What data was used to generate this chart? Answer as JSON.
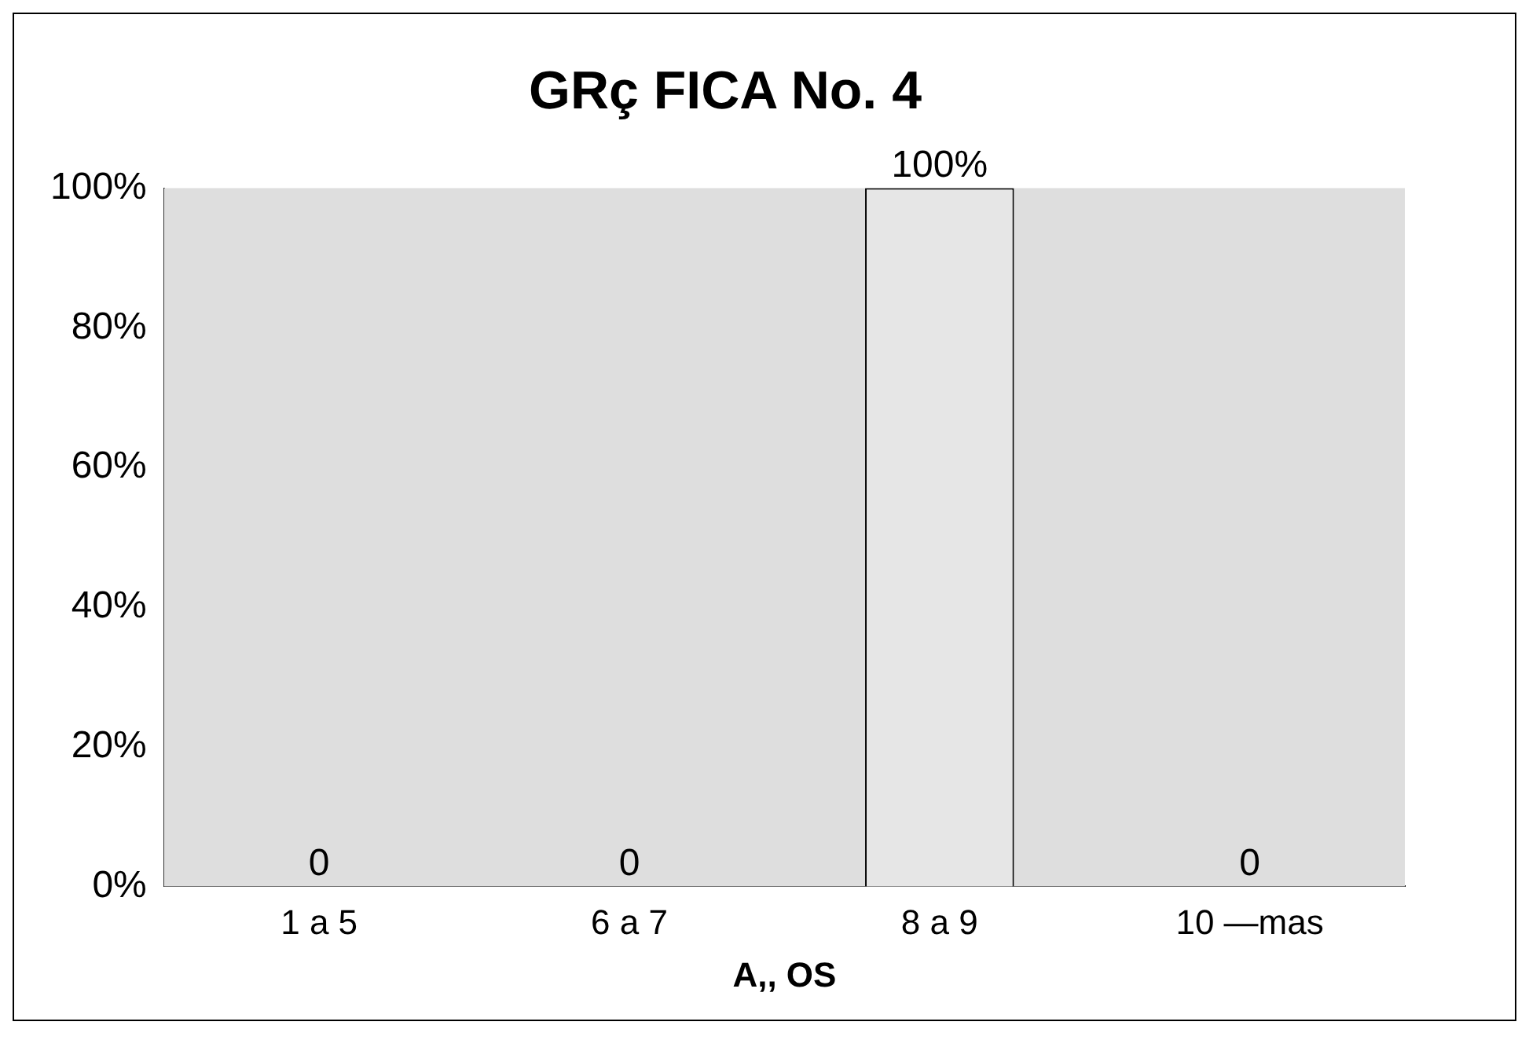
{
  "chart_data": {
    "type": "bar",
    "title": "GRç FICA No. 4",
    "xlabel": "A,, OS",
    "categories": [
      "1 a 5",
      "6 a 7",
      "8 a 9",
      "10 —mas"
    ],
    "values": [
      0,
      0,
      100,
      0
    ],
    "color": "#e6e6e6",
    "value_labels": [
      "0",
      "0",
      "100%",
      "0"
    ],
    "ylim": [
      0,
      100
    ],
    "yticks": [
      {
        "value": 0,
        "label": "0%"
      },
      {
        "value": 20,
        "label": "20%"
      },
      {
        "value": 40,
        "label": "40%"
      },
      {
        "value": 60,
        "label": "60%"
      },
      {
        "value": 80,
        "label": "80%"
      },
      {
        "value": 100,
        "label": "100%"
      }
    ],
    "grid": false,
    "legend": false
  }
}
